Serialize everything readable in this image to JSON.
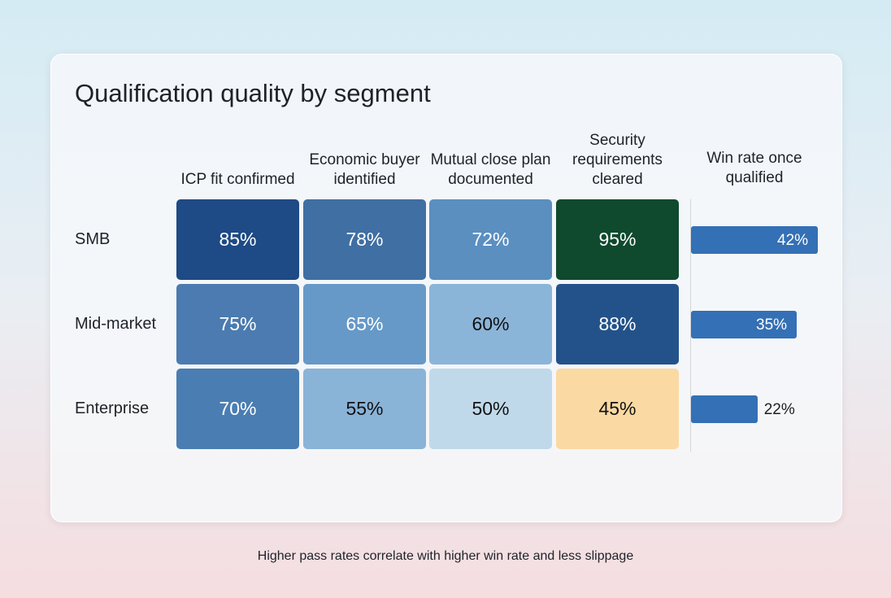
{
  "chart_data": {
    "type": "heatmap",
    "title": "Qualification quality by segment",
    "columns": [
      "ICP fit confirmed",
      "Economic buyer identified",
      "Mutual close plan documented",
      "Security requirements cleared"
    ],
    "rows": [
      "SMB",
      "Mid-market",
      "Enterprise"
    ],
    "values": [
      [
        85,
        78,
        72,
        95
      ],
      [
        75,
        65,
        60,
        88
      ],
      [
        70,
        55,
        50,
        45
      ]
    ],
    "labels": [
      [
        "85%",
        "78%",
        "72%",
        "95%"
      ],
      [
        "75%",
        "65%",
        "60%",
        "88%"
      ],
      [
        "70%",
        "55%",
        "50%",
        "45%"
      ]
    ],
    "cell_colors": [
      [
        "#1e4a85",
        "#3f6fa3",
        "#5a8fc0",
        "#0f4a2e"
      ],
      [
        "#4b7bb0",
        "#6699c8",
        "#8bb4d9",
        "#23528a"
      ],
      [
        "#4a7db2",
        "#8ab3d8",
        "#c0d9ea",
        "#fbd9a3"
      ]
    ],
    "text_colors": [
      [
        "#ffffff",
        "#ffffff",
        "#ffffff",
        "#ffffff"
      ],
      [
        "#ffffff",
        "#ffffff",
        "#111111",
        "#ffffff"
      ],
      [
        "#ffffff",
        "#111111",
        "#111111",
        "#111111"
      ]
    ],
    "win_rate": {
      "header": "Win rate once qualified",
      "type": "bar",
      "values": [
        42,
        35,
        22
      ],
      "labels": [
        "42%",
        "35%",
        "22%"
      ],
      "color": "#3470b5"
    },
    "footnote": "Higher pass rates correlate with higher win rate and less slippage"
  }
}
